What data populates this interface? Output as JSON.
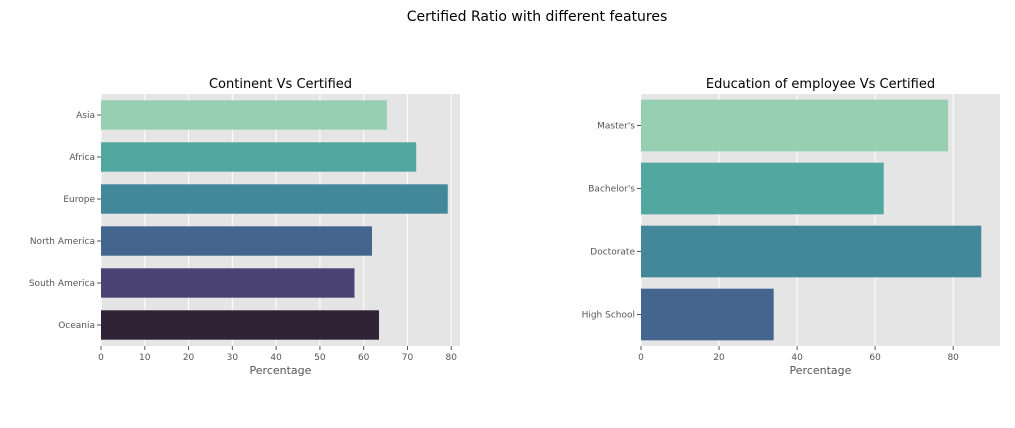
{
  "figure": {
    "title": "Certified Ratio with different features"
  },
  "chart_data": [
    {
      "type": "bar",
      "orientation": "horizontal",
      "title": "Continent Vs Certified",
      "xlabel": "Percentage",
      "ylabel": "",
      "xlim": [
        0,
        82
      ],
      "xticks": [
        0,
        10,
        20,
        30,
        40,
        50,
        60,
        70,
        80
      ],
      "grid": true,
      "categories": [
        "Asia",
        "Africa",
        "Europe",
        "North America",
        "South America",
        "Oceania"
      ],
      "values": [
        65.3,
        72.0,
        79.2,
        61.9,
        57.9,
        63.5
      ],
      "colors": [
        "#96cfb2",
        "#52a8a0",
        "#43889a",
        "#44668e",
        "#4a4374",
        "#2f2335"
      ]
    },
    {
      "type": "bar",
      "orientation": "horizontal",
      "title": "Education of employee Vs Certified",
      "xlabel": "Percentage",
      "ylabel": "",
      "xlim": [
        0,
        92
      ],
      "xticks": [
        0,
        20,
        40,
        60,
        80
      ],
      "grid": true,
      "categories": [
        "Master's",
        "Bachelor's",
        "Doctorate",
        "High School"
      ],
      "values": [
        78.7,
        62.2,
        87.2,
        34.0
      ],
      "colors": [
        "#96cfb2",
        "#52a8a0",
        "#43889a",
        "#44668e"
      ]
    }
  ]
}
